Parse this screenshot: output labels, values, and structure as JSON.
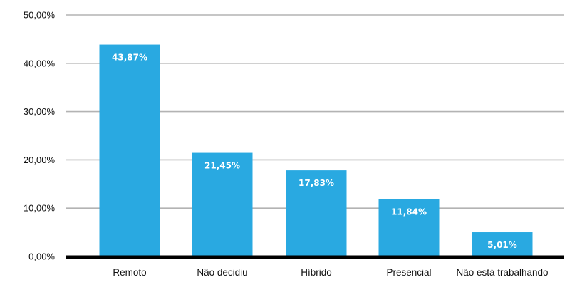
{
  "chart_data": {
    "type": "bar",
    "categories": [
      "Remoto",
      "Não decidiu",
      "Híbrido",
      "Presencial",
      "Não está trabalhando"
    ],
    "values": [
      43.87,
      21.45,
      17.83,
      11.84,
      5.01
    ],
    "data_labels": [
      "43,87%",
      "21,45%",
      "17,83%",
      "11,84%",
      "5,01%"
    ],
    "ylim": [
      0,
      50
    ],
    "yticks": [
      0,
      10,
      20,
      30,
      40,
      50
    ],
    "ytick_labels": [
      "0,00%",
      "10,00%",
      "20,00%",
      "30,00%",
      "40,00%",
      "50,00%"
    ],
    "grid": true,
    "legend": "none",
    "title": "",
    "xlabel": "",
    "ylabel": ""
  },
  "colors": {
    "bar": "#29a9e1",
    "grid": "#b3b3b3",
    "baseline": "#000000",
    "text": "#111111",
    "data_label": "#ffffff"
  }
}
